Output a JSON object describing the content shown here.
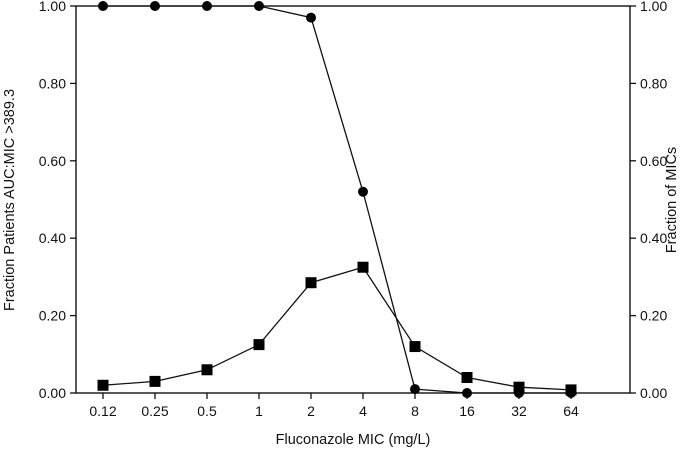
{
  "chart_data": {
    "type": "line",
    "x_label": "Fluconazole MIC (mg/L)",
    "y_label_left": "Fraction Patients AUC:MIC >389.3",
    "y_label_right": "Fraction of MICs",
    "categories": [
      "0.12",
      "0.25",
      "0.5",
      "1",
      "2",
      "4",
      "8",
      "16",
      "32",
      "64"
    ],
    "y_ticks": [
      "0.00",
      "0.20",
      "0.40",
      "0.60",
      "0.80",
      "1.00"
    ],
    "ylim": [
      0,
      1
    ],
    "grid": false,
    "legend": "none",
    "series": [
      {
        "marker": "circle",
        "axis": "left",
        "values": [
          1.0,
          1.0,
          1.0,
          1.0,
          0.97,
          0.52,
          0.01,
          0.0,
          0.0,
          0.0
        ]
      },
      {
        "marker": "square",
        "axis": "right",
        "values": [
          0.02,
          0.03,
          0.06,
          0.125,
          0.285,
          0.325,
          0.12,
          0.04,
          0.015,
          0.008
        ]
      }
    ],
    "colors": {
      "line": "#111111",
      "marker": "#000000"
    }
  }
}
